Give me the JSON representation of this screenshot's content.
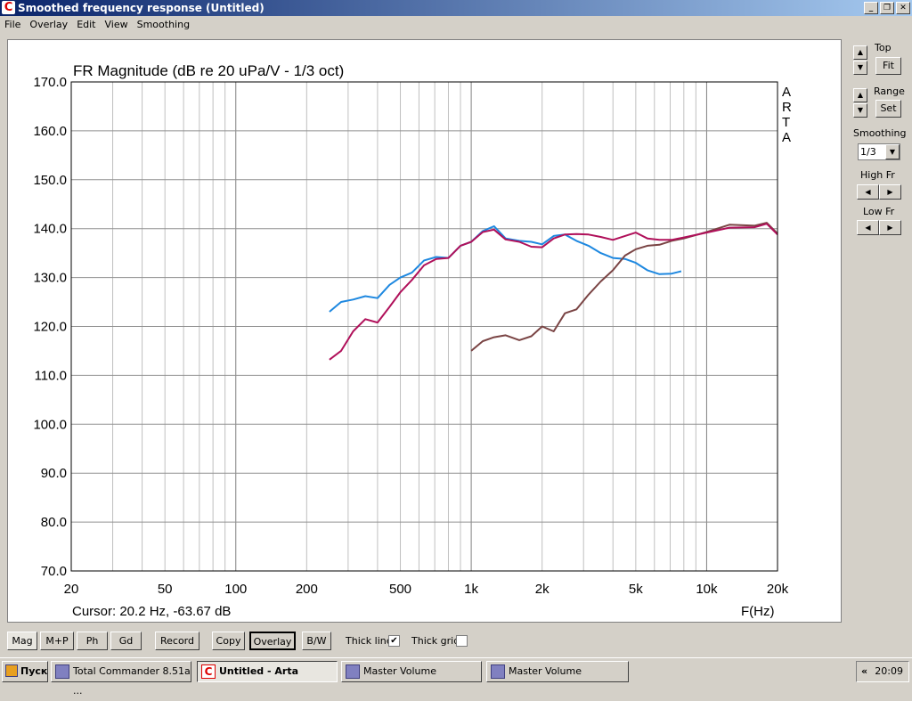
{
  "window": {
    "title": "Smoothed frequency response (Untitled)",
    "controls": [
      "_",
      "❐",
      "✕"
    ]
  },
  "menu": [
    "File",
    "Overlay",
    "Edit",
    "View",
    "Smoothing"
  ],
  "right_panel": {
    "top_label": "Top",
    "fit": "Fit",
    "range_label": "Range",
    "set": "Set",
    "smoothing_label": "Smoothing",
    "smoothing_value": "1/3",
    "high_fr": "High Fr",
    "low_fr": "Low Fr"
  },
  "toolbar": {
    "buttons": [
      "Mag",
      "M+P",
      "Ph",
      "Gd",
      "Record",
      "Copy",
      "Overlay",
      "B/W"
    ],
    "active": [
      "Mag",
      "Overlay"
    ],
    "thick_line": "Thick line",
    "thick_line_checked": true,
    "thick_grid": "Thick grid",
    "thick_grid_checked": false
  },
  "taskbar": {
    "start": "Пуск",
    "tasks": [
      "Total Commander 8.51a ...",
      "Untitled - Arta",
      "Master Volume",
      "Master Volume"
    ],
    "active_task": "Untitled - Arta",
    "tray_arrow": "«",
    "clock": "20:09"
  },
  "chart_data": {
    "type": "line",
    "title": "FR Magnitude (dB re 20 uPa/V - 1/3 oct)",
    "xlabel": "F(Hz)",
    "xscale": "log",
    "xlim": [
      20,
      20000
    ],
    "ylim": [
      70,
      170
    ],
    "xticks": [
      20,
      50,
      100,
      200,
      500,
      1000,
      2000,
      5000,
      10000,
      20000
    ],
    "xtick_labels": [
      "20",
      "50",
      "100",
      "200",
      "500",
      "1k",
      "2k",
      "5k",
      "10k",
      "20k"
    ],
    "yticks": [
      "170.0",
      "160.0",
      "150.0",
      "140.0",
      "130.0",
      "120.0",
      "110.0",
      "100.0",
      "90.0",
      "80.0",
      "70.0"
    ],
    "grid": true,
    "watermark": [
      "A",
      "R",
      "T",
      "A"
    ],
    "cursor": "Cursor: 20.2 Hz, -63.67 dB",
    "series": [
      {
        "color": "#1e88e0",
        "x": [
          250,
          280,
          315,
          355,
          400,
          450,
          500,
          560,
          630,
          710,
          800,
          900,
          1000,
          1120,
          1250,
          1400,
          1600,
          1800,
          2000,
          2240,
          2500,
          2800,
          3150,
          3550,
          4000,
          4500,
          5000,
          5600,
          6300,
          7100,
          7800
        ],
        "y": [
          123,
          125,
          125.5,
          126.2,
          125.8,
          128.5,
          130,
          131,
          133.5,
          134.2,
          134,
          136.5,
          137.3,
          139.5,
          140.5,
          138,
          137.5,
          137.3,
          136.8,
          138.5,
          138.8,
          137.5,
          136.5,
          135,
          134,
          133.8,
          133,
          131.5,
          130.7,
          130.8,
          131.3
        ]
      },
      {
        "color": "#7a4444",
        "x": [
          1000,
          1120,
          1250,
          1400,
          1600,
          1800,
          2000,
          2240,
          2500,
          2800,
          3150,
          3550,
          4000,
          4500,
          5000,
          5600,
          6300,
          7100,
          8000,
          10000,
          12500,
          16000,
          18000,
          20000
        ],
        "y": [
          115,
          117,
          117.8,
          118.2,
          117.2,
          118,
          120,
          119,
          122.7,
          123.5,
          126.5,
          129.2,
          131.5,
          134.5,
          135.8,
          136.5,
          136.7,
          137.5,
          138,
          139.3,
          140.8,
          140.6,
          141.2,
          139
        ]
      },
      {
        "color": "#b0105a",
        "x": [
          250,
          280,
          315,
          355,
          400,
          450,
          500,
          560,
          630,
          710,
          800,
          900,
          1000,
          1120,
          1250,
          1400,
          1600,
          1800,
          2000,
          2240,
          2500,
          2800,
          3150,
          3550,
          4000,
          4500,
          5000,
          5600,
          6300,
          7100,
          8000,
          10000,
          12500,
          16000,
          18000,
          20000
        ],
        "y": [
          113.2,
          115,
          119,
          121.5,
          120.8,
          124,
          127,
          129.5,
          132.5,
          133.8,
          134,
          136.5,
          137.3,
          139.3,
          139.8,
          137.8,
          137.3,
          136.3,
          136.2,
          138,
          138.8,
          138.9,
          138.8,
          138.3,
          137.7,
          138.5,
          139.2,
          138,
          137.7,
          137.7,
          138.2,
          139.2,
          140.2,
          140.3,
          141,
          138.8
        ]
      }
    ]
  }
}
